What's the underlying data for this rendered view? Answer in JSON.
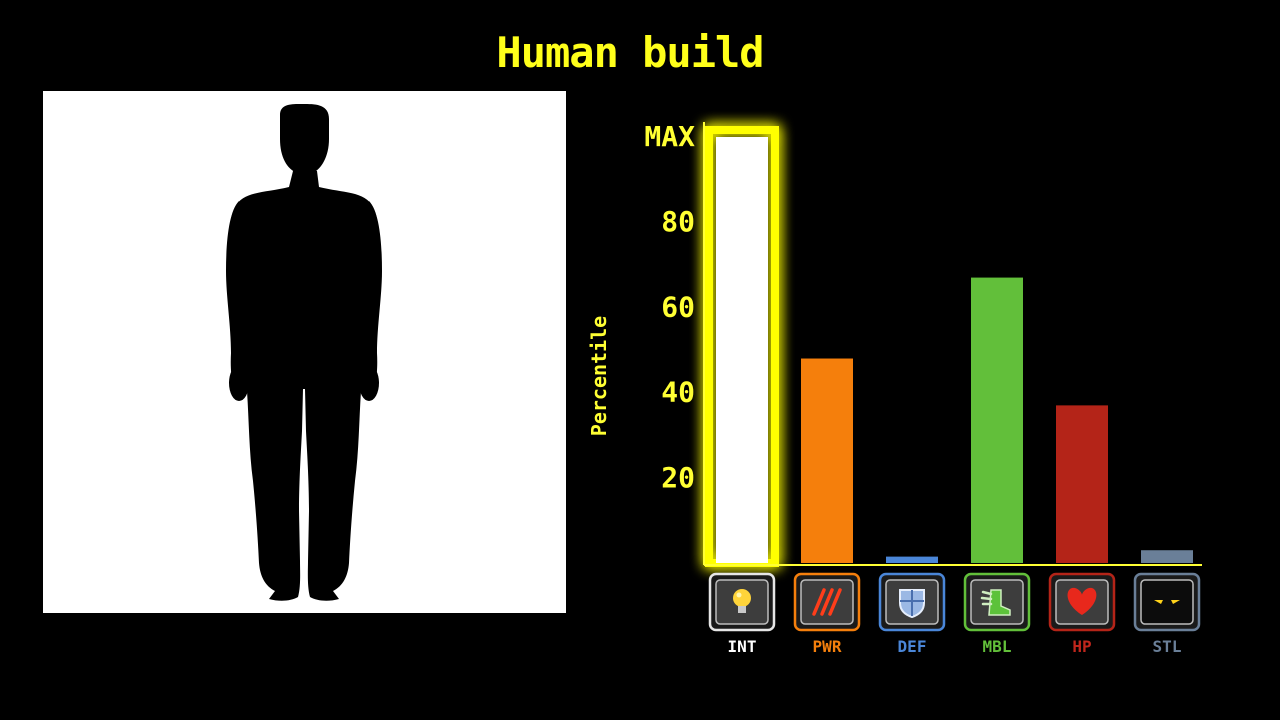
{
  "title": "Human build",
  "figure": {
    "icon": "human-silhouette-icon"
  },
  "chart_data": {
    "type": "bar",
    "categories": [
      "INT",
      "PWR",
      "DEF",
      "MBL",
      "HP",
      "STL"
    ],
    "values": [
      100,
      48,
      1.5,
      67,
      37,
      3
    ],
    "colors": [
      "#ffffff",
      "#f57f0c",
      "#4a86d8",
      "#62bf3a",
      "#b42418",
      "#6a7f98"
    ],
    "label_colors": [
      "#ffffff",
      "#f57f0c",
      "#4a86d8",
      "#62bf3a",
      "#c0261c",
      "#6a7f98"
    ],
    "icons": [
      "lightbulb-icon",
      "claw-marks-icon",
      "shield-icon",
      "winged-boot-icon",
      "heart-icon",
      "glowing-eyes-icon"
    ],
    "highlight": "INT",
    "highlight_color": "#ffff00",
    "ylabel": "Percentile",
    "ylim": [
      0,
      100
    ],
    "yticks": [
      20,
      40,
      60,
      80,
      100
    ],
    "ytick_labels": [
      "20",
      "40",
      "60",
      "80",
      "MAX"
    ],
    "grid": false,
    "legend": "none"
  }
}
